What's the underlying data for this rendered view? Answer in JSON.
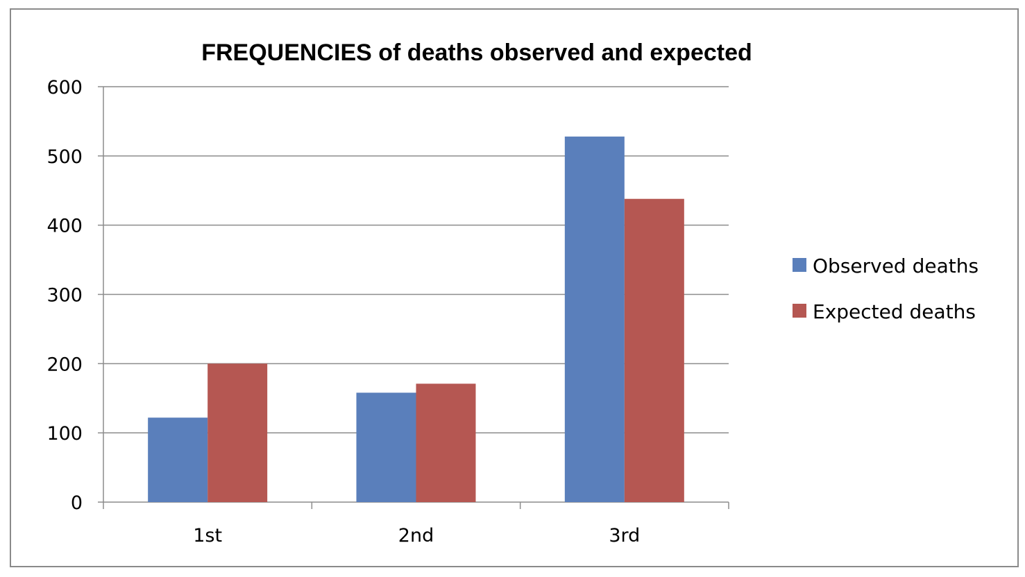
{
  "chart_data": {
    "type": "bar",
    "title": "FREQUENCIES of deaths observed and expected",
    "xlabel": "",
    "ylabel": "",
    "categories": [
      "1st",
      "2nd",
      "3rd"
    ],
    "series": [
      {
        "name": "Observed deaths",
        "values": [
          122,
          158,
          528
        ],
        "color": "#5a7fbb"
      },
      {
        "name": "Expected deaths",
        "values": [
          200,
          171,
          438
        ],
        "color": "#b55752"
      }
    ],
    "ylim": [
      0,
      600
    ],
    "yticks": [
      0,
      100,
      200,
      300,
      400,
      500,
      600
    ],
    "grid": true,
    "legend": "right"
  }
}
